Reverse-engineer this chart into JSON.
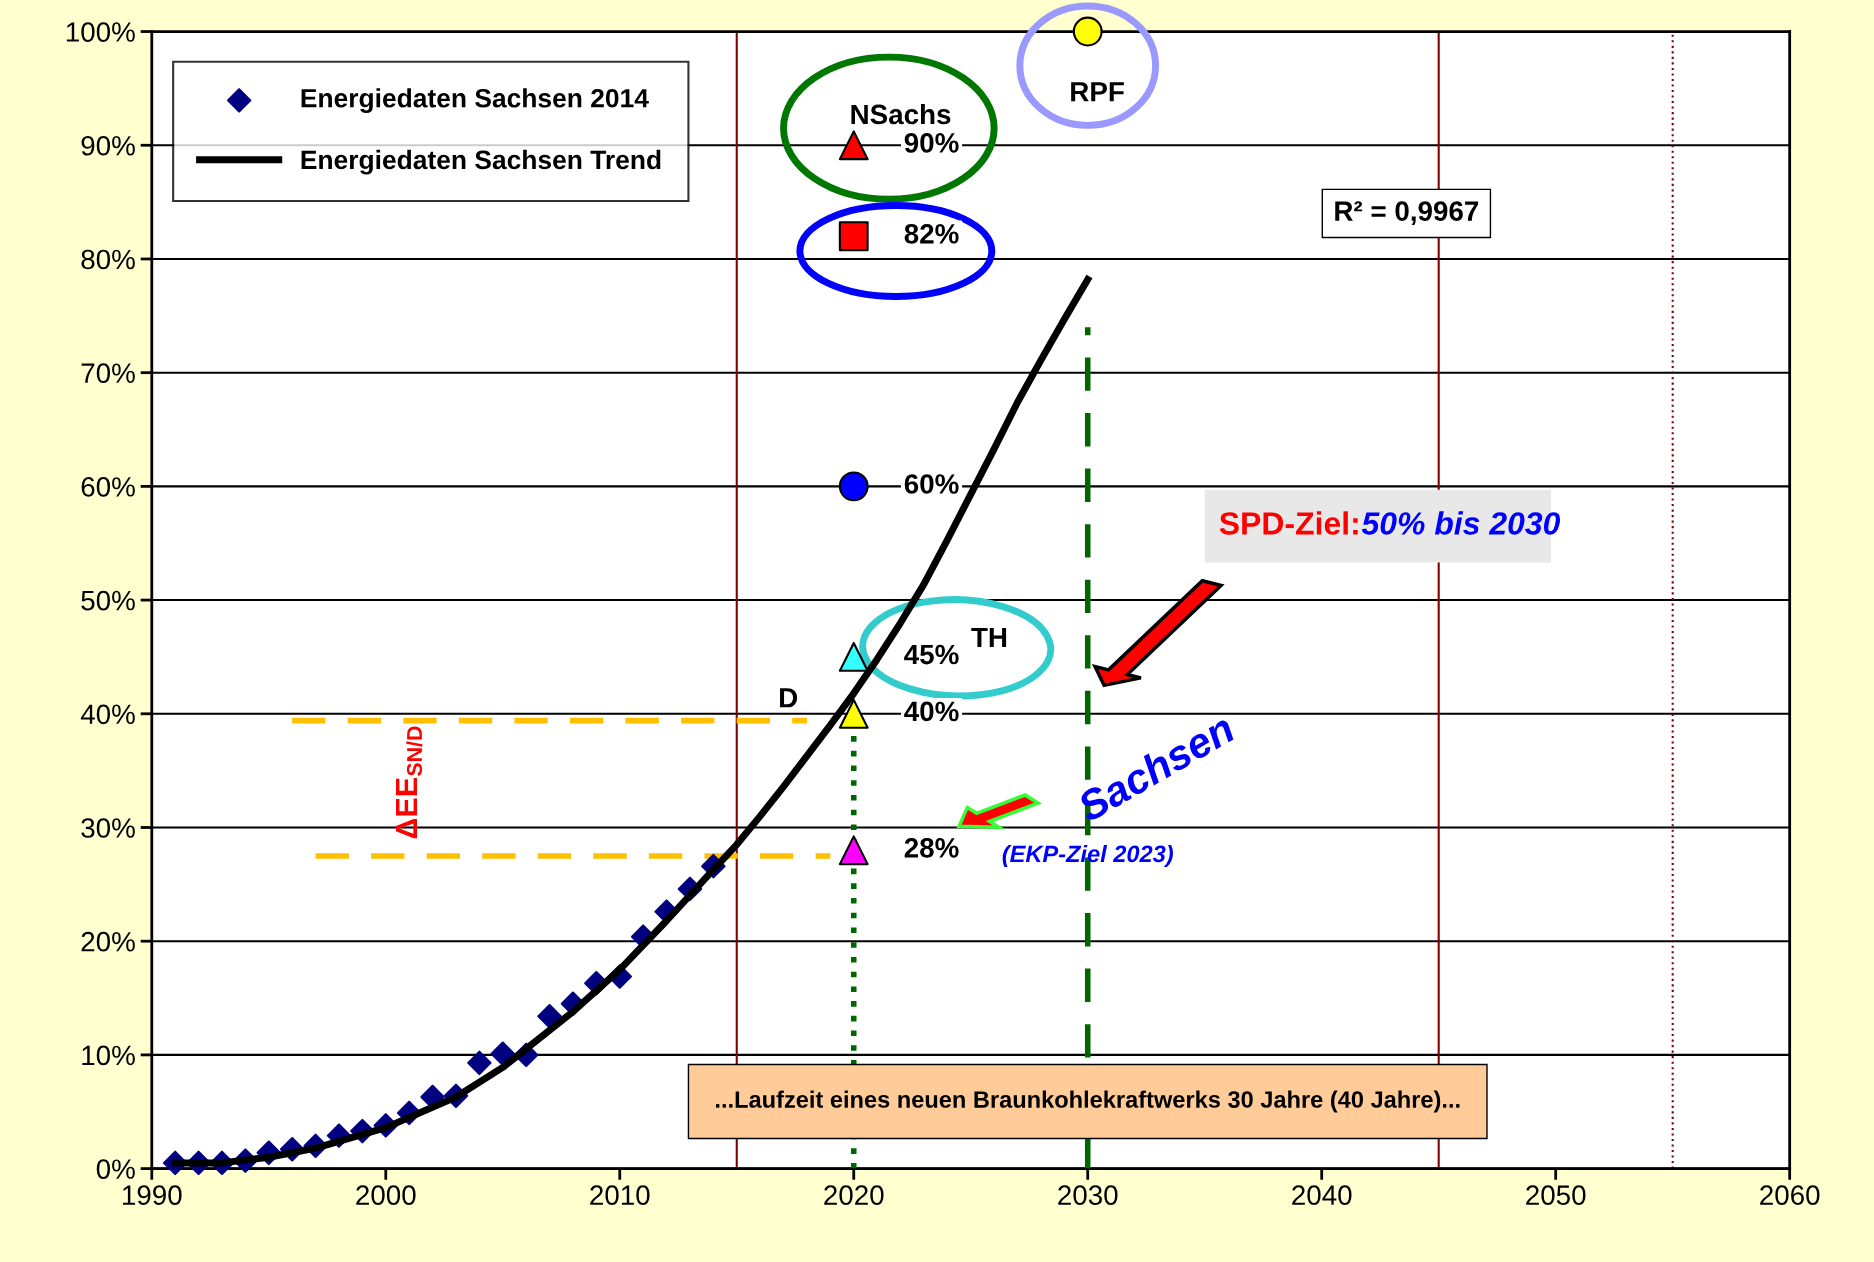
{
  "chart_data": {
    "type": "scatter",
    "xlim": [
      1990,
      2060
    ],
    "xticks": [
      1990,
      2000,
      2010,
      2020,
      2030,
      2040,
      2050,
      2060
    ],
    "ylim": [
      0,
      100
    ],
    "yticks": [
      {
        "value": 0,
        "label": "0%"
      },
      {
        "value": 10,
        "label": "10%"
      },
      {
        "value": 20,
        "label": "20%"
      },
      {
        "value": 30,
        "label": "30%"
      },
      {
        "value": 40,
        "label": "40%"
      },
      {
        "value": 50,
        "label": "50%"
      },
      {
        "value": 60,
        "label": "60%"
      },
      {
        "value": 70,
        "label": "70%"
      },
      {
        "value": 80,
        "label": "80%"
      },
      {
        "value": 90,
        "label": "90%"
      },
      {
        "value": 100,
        "label": "100%"
      }
    ],
    "grid": "y",
    "legend": "top left",
    "series": [
      {
        "name": "Energiedaten Sachsen 2014",
        "marker": "diamond",
        "color": "#000080",
        "x": [
          1991,
          1992,
          1993,
          1994,
          1995,
          1996,
          1997,
          1998,
          1999,
          2000,
          2001,
          2002,
          2003,
          2004,
          2005,
          2006,
          2007,
          2008,
          2009,
          2010,
          2011,
          2012,
          2013,
          2014
        ],
        "values": [
          0.5,
          0.5,
          0.5,
          0.7,
          1.4,
          1.7,
          2.0,
          2.9,
          3.3,
          3.8,
          4.9,
          6.3,
          6.4,
          9.3,
          10.1,
          10.0,
          13.4,
          14.5,
          16.3,
          16.9,
          20.4,
          22.6,
          24.6,
          26.6
        ]
      },
      {
        "name": "Energiedaten Sachsen Trend",
        "type": "line",
        "marker": "none",
        "line_style": "solid",
        "color": "#000000",
        "x": [
          1991,
          1993,
          1995,
          1997,
          2000,
          2003,
          2005,
          2008,
          2010,
          2012,
          2014,
          2015,
          2016,
          2017,
          2018,
          2019,
          2020,
          2021,
          2022,
          2023,
          2024,
          2025,
          2026,
          2027,
          2028,
          2029,
          2030
        ],
        "values": [
          0.5,
          0.5,
          1.0,
          1.8,
          3.6,
          6.3,
          8.9,
          13.8,
          17.5,
          21.8,
          26.3,
          28.5,
          31.0,
          33.6,
          36.3,
          39.0,
          41.8,
          44.8,
          48.0,
          51.4,
          55.3,
          59.3,
          63.3,
          67.4,
          71.1,
          74.7,
          78.2
        ]
      },
      {
        "type": "line",
        "marker": "none",
        "line_style": "dashed",
        "color": "#ffc000",
        "x": [
          1996,
          2018
        ],
        "values": [
          39.4,
          39.4
        ]
      },
      {
        "type": "line",
        "marker": "none",
        "line_style": "dashed",
        "color": "#ffc000",
        "x": [
          1997,
          2019
        ],
        "values": [
          27.5,
          27.5
        ]
      },
      {
        "type": "line",
        "marker": "none",
        "line_style": "dotted",
        "color": "#006600",
        "x": [
          2020,
          2020
        ],
        "values": [
          0,
          40
        ]
      },
      {
        "type": "line",
        "marker": "none",
        "line_style": "dashed",
        "color": "#006600",
        "x": [
          2030,
          2030
        ],
        "values": [
          0,
          74
        ]
      },
      {
        "marker": "triangle",
        "color": "#ff0000",
        "x": [
          2020
        ],
        "values": [
          90
        ],
        "value_labels": [
          "90%"
        ]
      },
      {
        "marker": "square",
        "color": "#ff0000",
        "x": [
          2020
        ],
        "values": [
          82
        ],
        "value_labels": [
          "82%"
        ]
      },
      {
        "marker": "circle",
        "color": "#0000ff",
        "x": [
          2020
        ],
        "values": [
          60
        ],
        "value_labels": [
          "60%"
        ]
      },
      {
        "marker": "triangle",
        "color": "#33ffff",
        "x": [
          2020
        ],
        "values": [
          45
        ],
        "value_labels": [
          "45%"
        ]
      },
      {
        "marker": "triangle",
        "color": "#ffff00",
        "x": [
          2020
        ],
        "values": [
          40
        ],
        "value_labels": [
          "40%"
        ]
      },
      {
        "marker": "triangle",
        "color": "#ff00ff",
        "x": [
          2020
        ],
        "values": [
          28
        ],
        "value_labels": [
          "28%"
        ]
      },
      {
        "marker": "circle",
        "color": "#ffff00",
        "x": [
          2030
        ],
        "values": [
          100
        ]
      }
    ],
    "ref_lines": [
      {
        "axis": "x",
        "value": 2015,
        "color": "#800000",
        "line_style": "solid"
      },
      {
        "axis": "x",
        "value": 2045,
        "color": "#800000",
        "line_style": "solid"
      },
      {
        "axis": "x",
        "value": 2055,
        "color": "#800000",
        "line_style": "dotted"
      }
    ],
    "annotations": [
      "NSachs",
      "RPF",
      "R² = 0,9967",
      "SPD-Ziel:",
      "50% bis 2030",
      "TH",
      "D",
      "ΔEE$_{SN/D}$",
      "Sachsen",
      {
        "text": "(EKP-Ziel 2023)",
        "x": 2030,
        "y": 27.5
      },
      {
        "text": "...Laufzeit eines neuen Braunkohlekraftwerks 30 Jahre (40 Jahre)...",
        "x": 2030,
        "y": 5.9
      }
    ]
  }
}
